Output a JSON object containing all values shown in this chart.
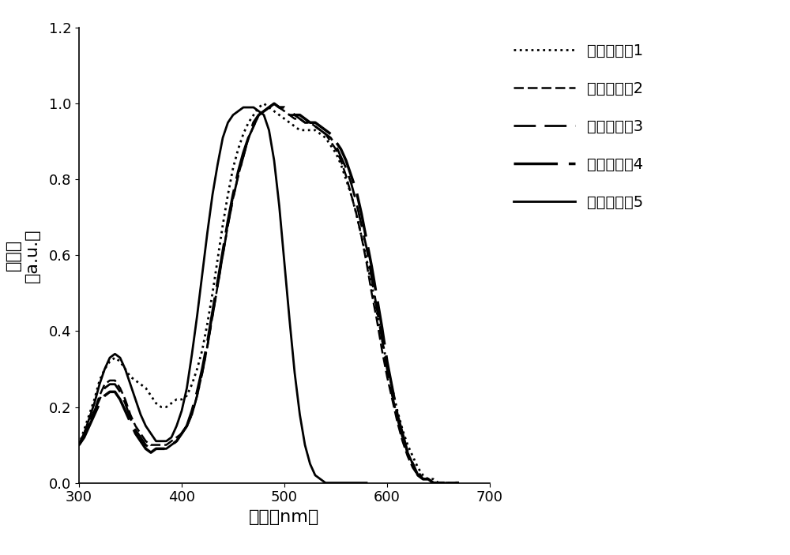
{
  "title": "",
  "xlabel": "波长（nm）",
  "ylabel": "吸收度\n（a.u.）",
  "xlim": [
    300,
    700
  ],
  "ylim": [
    0.0,
    1.2
  ],
  "xticks": [
    300,
    400,
    500,
    600,
    700
  ],
  "yticks": [
    0.0,
    0.2,
    0.4,
    0.6,
    0.8,
    1.0,
    1.2
  ],
  "legend_labels": [
    "共轭聚合物1",
    "共轭聚合物2",
    "共轭聚合物3",
    "共轭聚合物4",
    "共轭聚合物5"
  ],
  "line_color": "#000000",
  "background_color": "#ffffff",
  "curves": {
    "polymer1": {
      "x": [
        300,
        305,
        310,
        315,
        320,
        325,
        330,
        335,
        340,
        345,
        350,
        355,
        360,
        365,
        370,
        375,
        380,
        385,
        390,
        395,
        400,
        405,
        410,
        415,
        420,
        425,
        430,
        435,
        440,
        445,
        450,
        455,
        460,
        465,
        470,
        475,
        480,
        485,
        490,
        495,
        500,
        505,
        510,
        515,
        520,
        525,
        530,
        535,
        540,
        545,
        550,
        555,
        560,
        565,
        570,
        575,
        580,
        585,
        590,
        595,
        600,
        605,
        610,
        615,
        620,
        625,
        630,
        635,
        640,
        645,
        650,
        655,
        660,
        665,
        670
      ],
      "y": [
        0.1,
        0.14,
        0.18,
        0.22,
        0.27,
        0.3,
        0.32,
        0.33,
        0.32,
        0.3,
        0.28,
        0.27,
        0.26,
        0.25,
        0.23,
        0.21,
        0.2,
        0.2,
        0.21,
        0.22,
        0.22,
        0.23,
        0.26,
        0.3,
        0.35,
        0.42,
        0.5,
        0.59,
        0.68,
        0.76,
        0.83,
        0.88,
        0.92,
        0.95,
        0.97,
        0.99,
        1.0,
        0.99,
        0.98,
        0.97,
        0.96,
        0.95,
        0.94,
        0.93,
        0.93,
        0.93,
        0.93,
        0.92,
        0.91,
        0.89,
        0.87,
        0.84,
        0.8,
        0.76,
        0.71,
        0.65,
        0.59,
        0.52,
        0.45,
        0.38,
        0.31,
        0.25,
        0.19,
        0.14,
        0.1,
        0.07,
        0.04,
        0.02,
        0.01,
        0.01,
        0.0,
        0.0,
        0.0,
        0.0,
        0.0
      ]
    },
    "polymer2": {
      "x": [
        300,
        305,
        310,
        315,
        320,
        325,
        330,
        335,
        340,
        345,
        350,
        355,
        360,
        365,
        370,
        375,
        380,
        385,
        390,
        395,
        400,
        405,
        410,
        415,
        420,
        425,
        430,
        435,
        440,
        445,
        450,
        455,
        460,
        465,
        470,
        475,
        480,
        485,
        490,
        495,
        500,
        505,
        510,
        515,
        520,
        525,
        530,
        535,
        540,
        545,
        550,
        555,
        560,
        565,
        570,
        575,
        580,
        585,
        590,
        595,
        600,
        605,
        610,
        615,
        620,
        625,
        630,
        635,
        640,
        645,
        650,
        655,
        660,
        665,
        670
      ],
      "y": [
        0.1,
        0.13,
        0.16,
        0.19,
        0.23,
        0.26,
        0.27,
        0.27,
        0.25,
        0.22,
        0.18,
        0.15,
        0.13,
        0.11,
        0.1,
        0.1,
        0.1,
        0.1,
        0.11,
        0.12,
        0.13,
        0.15,
        0.18,
        0.23,
        0.29,
        0.36,
        0.44,
        0.52,
        0.6,
        0.68,
        0.75,
        0.81,
        0.86,
        0.91,
        0.94,
        0.97,
        0.98,
        0.99,
        1.0,
        0.99,
        0.98,
        0.97,
        0.96,
        0.96,
        0.95,
        0.95,
        0.94,
        0.93,
        0.92,
        0.9,
        0.88,
        0.85,
        0.81,
        0.76,
        0.71,
        0.65,
        0.58,
        0.5,
        0.43,
        0.35,
        0.28,
        0.22,
        0.16,
        0.11,
        0.07,
        0.04,
        0.02,
        0.01,
        0.01,
        0.0,
        0.0,
        0.0,
        0.0,
        0.0,
        0.0
      ]
    },
    "polymer3": {
      "x": [
        300,
        305,
        310,
        315,
        320,
        325,
        330,
        335,
        340,
        345,
        350,
        355,
        360,
        365,
        370,
        375,
        380,
        385,
        390,
        395,
        400,
        405,
        410,
        415,
        420,
        425,
        430,
        435,
        440,
        445,
        450,
        455,
        460,
        465,
        470,
        475,
        480,
        485,
        490,
        495,
        500,
        505,
        510,
        515,
        520,
        525,
        530,
        535,
        540,
        545,
        550,
        555,
        560,
        565,
        570,
        575,
        580,
        585,
        590,
        595,
        600,
        605,
        610,
        615,
        620,
        625,
        630,
        635,
        640,
        645,
        650,
        655,
        660,
        665,
        670
      ],
      "y": [
        0.1,
        0.13,
        0.16,
        0.19,
        0.22,
        0.25,
        0.26,
        0.26,
        0.24,
        0.21,
        0.17,
        0.14,
        0.12,
        0.1,
        0.09,
        0.09,
        0.09,
        0.09,
        0.1,
        0.11,
        0.13,
        0.15,
        0.18,
        0.23,
        0.29,
        0.36,
        0.44,
        0.52,
        0.6,
        0.68,
        0.75,
        0.81,
        0.86,
        0.91,
        0.94,
        0.97,
        0.98,
        0.99,
        1.0,
        0.99,
        0.98,
        0.97,
        0.97,
        0.96,
        0.95,
        0.95,
        0.94,
        0.93,
        0.92,
        0.91,
        0.89,
        0.86,
        0.83,
        0.79,
        0.74,
        0.68,
        0.62,
        0.54,
        0.46,
        0.38,
        0.3,
        0.23,
        0.17,
        0.12,
        0.08,
        0.05,
        0.03,
        0.01,
        0.01,
        0.0,
        0.0,
        0.0,
        0.0,
        0.0,
        0.0
      ]
    },
    "polymer4": {
      "x": [
        300,
        305,
        310,
        315,
        320,
        325,
        330,
        335,
        340,
        345,
        350,
        355,
        360,
        365,
        370,
        375,
        380,
        385,
        390,
        395,
        400,
        405,
        410,
        415,
        420,
        425,
        430,
        435,
        440,
        445,
        450,
        455,
        460,
        465,
        470,
        475,
        480,
        485,
        490,
        495,
        500,
        505,
        510,
        515,
        520,
        525,
        530,
        535,
        540,
        545,
        550,
        555,
        560,
        565,
        570,
        575,
        580,
        585,
        590,
        595,
        600,
        605,
        610,
        615,
        620,
        625,
        630,
        635,
        640,
        645,
        650,
        655,
        660,
        665,
        670
      ],
      "y": [
        0.1,
        0.12,
        0.15,
        0.18,
        0.21,
        0.23,
        0.24,
        0.24,
        0.22,
        0.19,
        0.16,
        0.13,
        0.11,
        0.09,
        0.08,
        0.09,
        0.09,
        0.09,
        0.1,
        0.11,
        0.13,
        0.15,
        0.19,
        0.24,
        0.3,
        0.37,
        0.45,
        0.53,
        0.61,
        0.69,
        0.76,
        0.82,
        0.87,
        0.91,
        0.95,
        0.97,
        0.98,
        0.99,
        1.0,
        0.99,
        0.99,
        0.98,
        0.97,
        0.97,
        0.96,
        0.95,
        0.95,
        0.94,
        0.93,
        0.92,
        0.9,
        0.88,
        0.85,
        0.81,
        0.77,
        0.71,
        0.64,
        0.57,
        0.49,
        0.41,
        0.32,
        0.25,
        0.18,
        0.13,
        0.08,
        0.05,
        0.02,
        0.01,
        0.01,
        0.0,
        0.0,
        0.0,
        0.0,
        0.0,
        0.0
      ]
    },
    "polymer5": {
      "x": [
        300,
        305,
        310,
        315,
        320,
        325,
        330,
        335,
        340,
        345,
        350,
        355,
        360,
        365,
        370,
        375,
        380,
        385,
        390,
        395,
        400,
        405,
        410,
        415,
        420,
        425,
        430,
        435,
        440,
        445,
        450,
        455,
        460,
        465,
        470,
        475,
        480,
        485,
        490,
        495,
        500,
        505,
        510,
        515,
        520,
        525,
        530,
        535,
        540,
        545,
        550,
        555,
        560,
        565,
        570,
        575,
        580
      ],
      "y": [
        0.1,
        0.13,
        0.17,
        0.21,
        0.26,
        0.3,
        0.33,
        0.34,
        0.33,
        0.3,
        0.26,
        0.22,
        0.18,
        0.15,
        0.13,
        0.11,
        0.11,
        0.11,
        0.12,
        0.15,
        0.19,
        0.25,
        0.34,
        0.44,
        0.55,
        0.66,
        0.76,
        0.84,
        0.91,
        0.95,
        0.97,
        0.98,
        0.99,
        0.99,
        0.99,
        0.98,
        0.97,
        0.93,
        0.85,
        0.73,
        0.58,
        0.43,
        0.29,
        0.18,
        0.1,
        0.05,
        0.02,
        0.01,
        0.0,
        0.0,
        0.0,
        0.0,
        0.0,
        0.0,
        0.0,
        0.0,
        0.0
      ]
    }
  }
}
